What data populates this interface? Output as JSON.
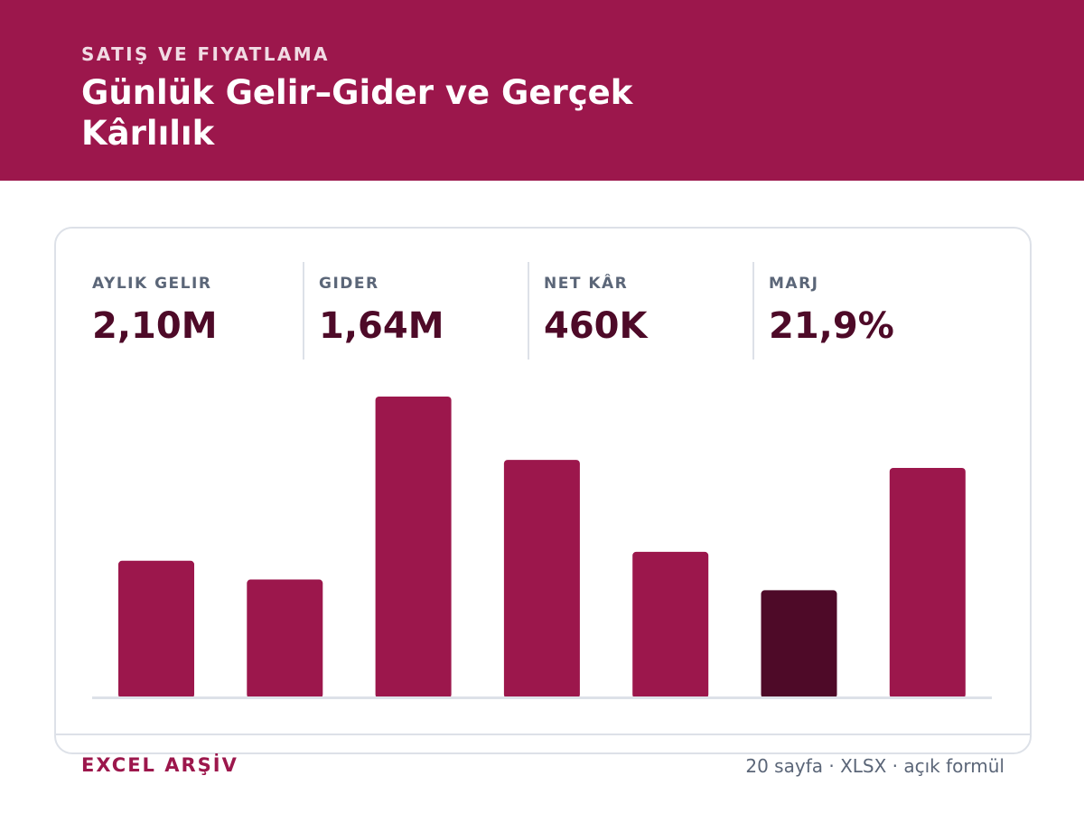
{
  "header": {
    "kicker": "SATIŞ VE FIYATLAMA",
    "title": "Günlük Gelir–Gider ve Gerçek Kârlılık",
    "background_color": "#9c174c"
  },
  "kpis": [
    {
      "label": "AYLIK GELIR",
      "value": "2,10M"
    },
    {
      "label": "GIDER",
      "value": "1,64M"
    },
    {
      "label": "NET KÂR",
      "value": "460K"
    },
    {
      "label": "MARJ",
      "value": "21,9%"
    }
  ],
  "chart_data": {
    "type": "bar",
    "categories": [
      "",
      "",
      "",
      "",
      "",
      "",
      ""
    ],
    "values": [
      152,
      131,
      336,
      265,
      162,
      119,
      256
    ],
    "ylim": [
      0,
      340
    ],
    "grid": false,
    "colors": [
      "#9c174c",
      "#9c174c",
      "#9c174c",
      "#9c174c",
      "#9c174c",
      "#4e0a28",
      "#9c174c"
    ],
    "highlight_index": 5,
    "title": "",
    "xlabel": "",
    "ylabel": ""
  },
  "footer": {
    "left": "EXCEL ARŞİV",
    "right": "20 sayfa · XLSX · açık formül"
  },
  "colors": {
    "accent": "#9c174c",
    "dark": "#4e0a28",
    "muted": "#5b6678",
    "border": "#dde1e8"
  }
}
